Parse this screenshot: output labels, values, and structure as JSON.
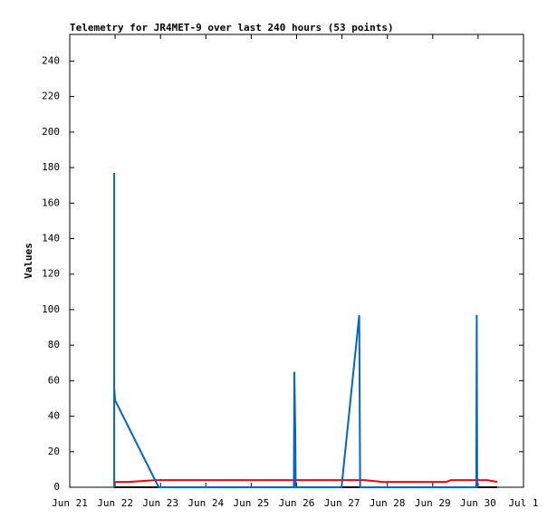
{
  "chart_data": {
    "type": "line",
    "title": "Telemetry for JR4MET-9 over last 240 hours (53 points)",
    "y_label": "Values",
    "xlim": [
      0,
      10
    ],
    "xticks": [
      {
        "value": 0,
        "label": "Jun 21"
      },
      {
        "value": 1,
        "label": "Jun 22"
      },
      {
        "value": 2,
        "label": "Jun 23"
      },
      {
        "value": 3,
        "label": "Jun 24"
      },
      {
        "value": 4,
        "label": "Jun 25"
      },
      {
        "value": 5,
        "label": "Jun 26"
      },
      {
        "value": 6,
        "label": "Jun 27"
      },
      {
        "value": 7,
        "label": "Jun 28"
      },
      {
        "value": 8,
        "label": "Jun 29"
      },
      {
        "value": 9,
        "label": "Jun 30"
      },
      {
        "value": 10,
        "label": "Jul 1"
      }
    ],
    "ylim": [
      0,
      255
    ],
    "yticks": [
      0,
      20,
      40,
      60,
      80,
      100,
      120,
      140,
      160,
      180,
      200,
      220,
      240
    ],
    "series": [
      {
        "color": "#000000",
        "x": [
          0.98,
          9.42
        ],
        "values": [
          0,
          0
        ]
      },
      {
        "color": "#ff0000",
        "x": [
          0.98,
          1.3,
          1.9,
          6.5,
          6.9,
          8.3,
          8.4,
          9.2,
          9.42
        ],
        "values": [
          3,
          3,
          4,
          4,
          3,
          3,
          4,
          4,
          3
        ]
      },
      {
        "color": "#0066cc",
        "x": [
          0.98,
          0.98,
          0.98,
          1.0,
          1.96,
          4.94,
          4.95,
          4.97,
          4.98,
          5.99,
          6.38,
          6.4,
          8.96,
          8.97,
          8.98
        ],
        "values": [
          0,
          177,
          56,
          49,
          0,
          0,
          65,
          32,
          0,
          0,
          97,
          0,
          0,
          97,
          0
        ]
      }
    ]
  }
}
